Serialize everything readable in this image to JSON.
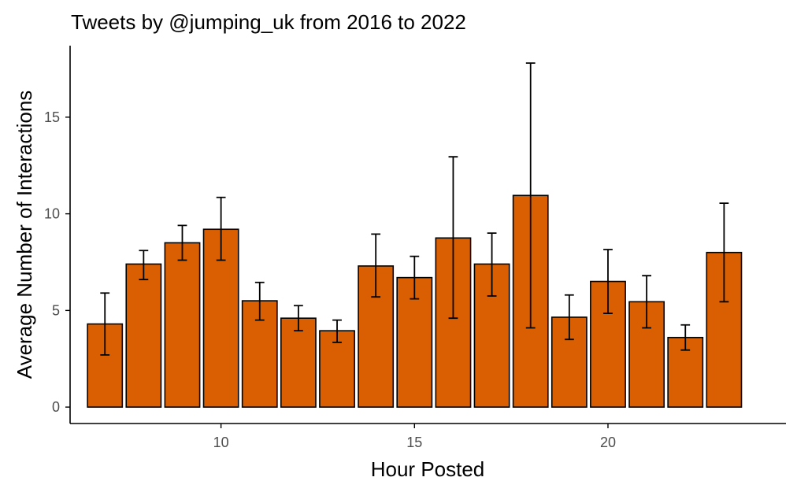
{
  "chart_data": {
    "type": "bar",
    "title": "Tweets by @jumping_uk from 2016 to 2022",
    "xlabel": "Hour Posted",
    "ylabel": "Average Number of Interactions",
    "xlim": [
      6.1,
      24.6
    ],
    "ylim": [
      -0.85,
      18.7
    ],
    "x_ticks": [
      10,
      15,
      20
    ],
    "y_ticks": [
      0,
      5,
      10,
      15
    ],
    "bar_color": "#D95F02",
    "grid": false,
    "series": [
      {
        "name": "Average Number of Interactions",
        "x": [
          7,
          8,
          9,
          10,
          11,
          12,
          13,
          14,
          15,
          16,
          17,
          18,
          19,
          20,
          21,
          22,
          23
        ],
        "values": [
          4.3,
          7.4,
          8.5,
          9.2,
          5.5,
          4.6,
          3.95,
          7.3,
          6.7,
          8.75,
          7.4,
          10.95,
          4.65,
          6.5,
          5.45,
          3.6,
          8.0
        ],
        "err_low": [
          2.7,
          6.6,
          7.6,
          7.6,
          4.5,
          3.95,
          3.35,
          5.7,
          5.6,
          4.6,
          5.75,
          4.1,
          3.5,
          4.85,
          4.1,
          2.95,
          5.45
        ],
        "err_high": [
          5.9,
          8.1,
          9.4,
          10.85,
          6.45,
          5.25,
          4.5,
          8.95,
          7.8,
          12.95,
          9.0,
          17.8,
          5.8,
          8.15,
          6.8,
          4.25,
          10.55
        ]
      }
    ]
  }
}
